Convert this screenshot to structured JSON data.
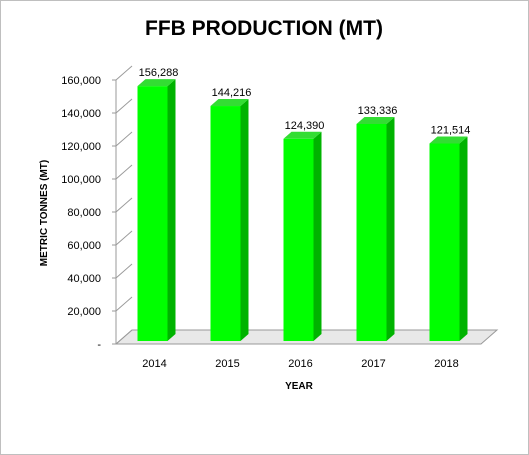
{
  "chart_data": {
    "type": "bar",
    "title": "FFB PRODUCTION (MT)",
    "xlabel": "YEAR",
    "ylabel": "METRIC  TONNES (MT)",
    "categories": [
      "2014",
      "2015",
      "2016",
      "2017",
      "2018"
    ],
    "values": [
      156288,
      144216,
      124390,
      133336,
      121514
    ],
    "data_labels": [
      "156,288",
      "144,216",
      "124,390",
      "133,336",
      "121,514"
    ],
    "yticks": [
      "-",
      "20,000",
      "40,000",
      "60,000",
      "80,000",
      "100,000",
      "120,000",
      "140,000",
      "160,000"
    ],
    "ytick_values": [
      0,
      20000,
      40000,
      60000,
      80000,
      100000,
      120000,
      140000,
      160000
    ],
    "ylim": [
      0,
      160000
    ],
    "grid": false,
    "legend": "none",
    "style": "3d-column",
    "colors": {
      "front": "#00ff00",
      "side": "#00b300",
      "top": "#33dd33",
      "axis": "#999999",
      "floor": "#e8e8e8"
    }
  }
}
